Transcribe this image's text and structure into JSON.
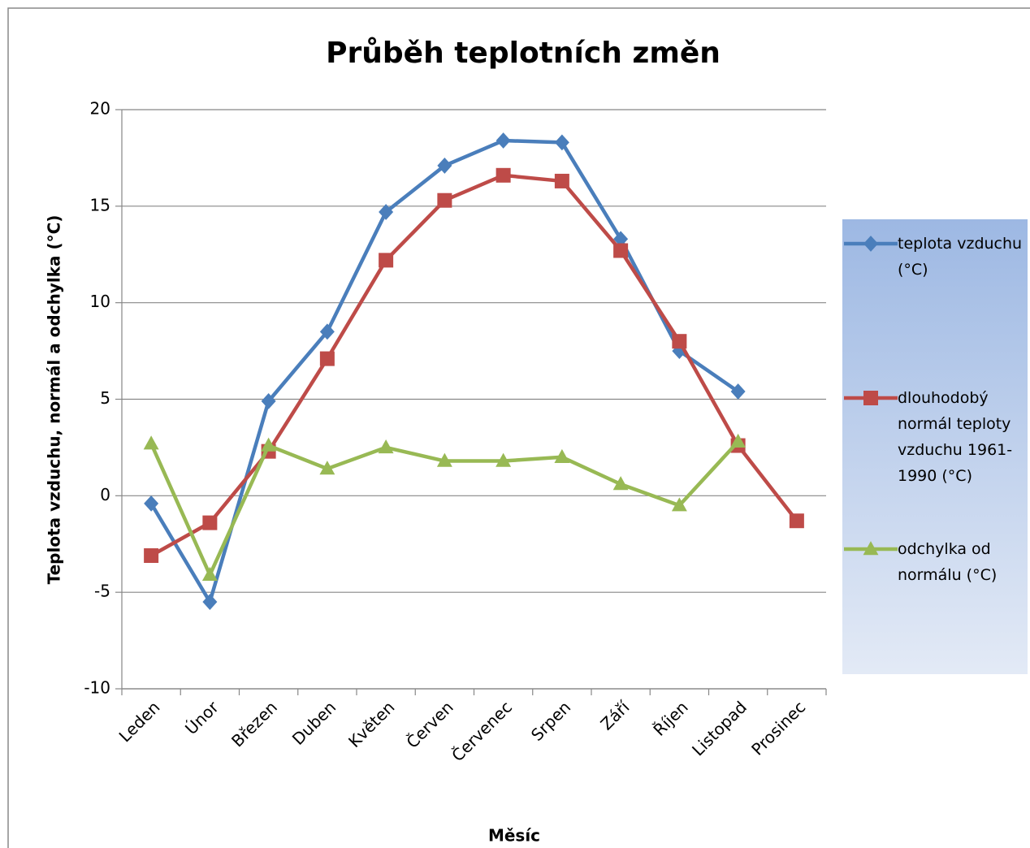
{
  "chart_data": {
    "type": "line",
    "title": "Průběh teplotních změn",
    "x_label": "Měsíc",
    "y_label": "Teplota vzduchu, normál a odchylka (°C)",
    "categories": [
      "Leden",
      "Únor",
      "Březen",
      "Duben",
      "Květen",
      "Červen",
      "Červenec",
      "Srpen",
      "Září",
      "Říjen",
      "Listopad",
      "Prosinec"
    ],
    "series": [
      {
        "name": "teplota vzduchu (°C)",
        "color": "#4a7ebb",
        "marker": "diamond",
        "values": [
          -0.4,
          -5.5,
          4.9,
          8.5,
          14.7,
          17.1,
          18.4,
          18.3,
          13.3,
          7.5,
          5.4,
          null
        ]
      },
      {
        "name": "dlouhodobý normál teploty vzduchu 1961-1990 (°C)",
        "color": "#be4b48",
        "marker": "square",
        "values": [
          -3.1,
          -1.4,
          2.3,
          7.1,
          12.2,
          15.3,
          16.6,
          16.3,
          12.7,
          8.0,
          2.6,
          -1.3
        ]
      },
      {
        "name": "odchylka od normálu (°C)",
        "color": "#98b954",
        "marker": "triangle",
        "values": [
          2.7,
          -4.1,
          2.6,
          1.4,
          2.5,
          1.8,
          1.8,
          2.0,
          0.6,
          -0.5,
          2.8,
          null
        ]
      }
    ],
    "ylim": [
      -10,
      20
    ],
    "yticks": [
      -10,
      -5,
      0,
      5,
      10,
      15,
      20
    ],
    "grid": true,
    "legend": "right"
  }
}
